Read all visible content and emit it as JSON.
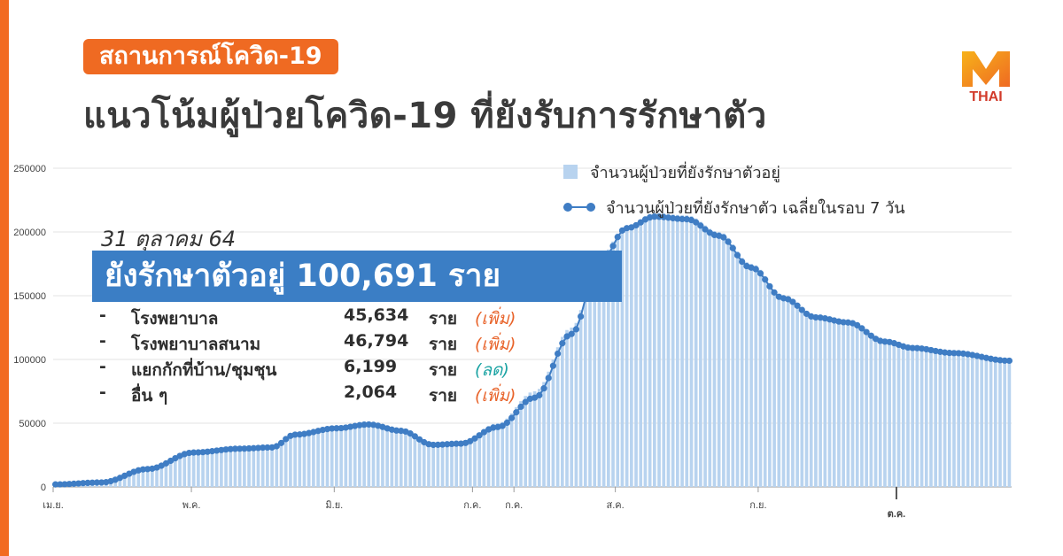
{
  "header": {
    "tag": "สถานการณ์โควิด-19",
    "title": "แนวโน้มผู้ป่วยโควิด-19 ที่ยังรับการรักษาตัว"
  },
  "logo": {
    "line1": "M",
    "line2": "THAI",
    "icon": "mthai-logo"
  },
  "colors": {
    "accent_orange": "#ef6a22",
    "bar": "#b8d3ef",
    "line": "#3f7dc4",
    "box_blue": "#3b7ec5",
    "note_up": "#e8632a",
    "note_down": "#1aa3a3"
  },
  "summary": {
    "date": "31 ตุลาคม 64",
    "total": "ยังรักษาตัวอยู่ 100,691 ราย",
    "items": [
      {
        "dash": "-",
        "name": "โรงพยาบาล",
        "value": "45,634",
        "unit": "ราย",
        "note": "(เพิ่ม)",
        "trend": "up"
      },
      {
        "dash": "-",
        "name": "โรงพยาบาลสนาม",
        "value": "46,794",
        "unit": "ราย",
        "note": "(เพิ่ม)",
        "trend": "up"
      },
      {
        "dash": "-",
        "name": "แยกกักที่บ้าน/ชุมชุน",
        "value": "6,199",
        "unit": "ราย",
        "note": "(ลด)",
        "trend": "down"
      },
      {
        "dash": "-",
        "name": "อื่น ๆ",
        "value": "2,064",
        "unit": "ราย",
        "note": "(เพิ่ม)",
        "trend": "up"
      }
    ]
  },
  "chart_data": {
    "type": "bar",
    "title": "แนวโน้มผู้ป่วยโควิด-19 ที่ยังรับการรักษาตัว",
    "ylim": [
      0,
      250000
    ],
    "yticks": [
      0,
      50000,
      100000,
      150000,
      200000,
      250000
    ],
    "ytick_labels": [
      "0",
      "50000",
      "100000",
      "150000",
      "200000",
      "250000"
    ],
    "xlim": [
      0,
      208
    ],
    "xticks": [
      {
        "x": 0,
        "label": "เม.ย.",
        "bold": false
      },
      {
        "x": 30,
        "label": "พ.ค.",
        "bold": false
      },
      {
        "x": 61,
        "label": "มิ.ย.",
        "bold": false
      },
      {
        "x": 91,
        "label": "ก.ค.",
        "bold": false
      },
      {
        "x": 100,
        "label": "ก.ค.",
        "bold": false
      },
      {
        "x": 122,
        "label": "ส.ค.",
        "bold": false
      },
      {
        "x": 153,
        "label": "ก.ย.",
        "bold": false
      },
      {
        "x": 183,
        "label": "ต.ค.",
        "bold": true
      }
    ],
    "legend": {
      "position": "top-right"
    },
    "grid": true,
    "series": [
      {
        "name": "จำนวนผู้ป่วยที่ยังรักษาตัวอยู่",
        "type": "bar",
        "interpolated_daily": true,
        "points": [
          [
            0,
            3000
          ],
          [
            10,
            5000
          ],
          [
            20,
            15000
          ],
          [
            30,
            28000
          ],
          [
            40,
            32000
          ],
          [
            47,
            33000
          ],
          [
            52,
            42000
          ],
          [
            61,
            47000
          ],
          [
            68,
            50000
          ],
          [
            75,
            46000
          ],
          [
            82,
            35000
          ],
          [
            88,
            35000
          ],
          [
            96,
            50000
          ],
          [
            104,
            75000
          ],
          [
            112,
            125000
          ],
          [
            118,
            180000
          ],
          [
            124,
            205000
          ],
          [
            130,
            215000
          ],
          [
            137,
            213000
          ],
          [
            144,
            200000
          ],
          [
            151,
            175000
          ],
          [
            158,
            150000
          ],
          [
            165,
            135000
          ],
          [
            172,
            130000
          ],
          [
            180,
            116000
          ],
          [
            186,
            110000
          ],
          [
            195,
            105000
          ],
          [
            207,
            100000
          ]
        ]
      },
      {
        "name": "จำนวนผู้ป่วยที่ยังรักษาตัว เฉลี่ยในรอบ 7 วัน",
        "type": "line",
        "interpolated_daily": true,
        "points": [
          [
            0,
            2000
          ],
          [
            10,
            3500
          ],
          [
            20,
            14000
          ],
          [
            30,
            27000
          ],
          [
            40,
            30000
          ],
          [
            47,
            31000
          ],
          [
            52,
            41000
          ],
          [
            61,
            46000
          ],
          [
            68,
            49000
          ],
          [
            75,
            44000
          ],
          [
            82,
            33000
          ],
          [
            88,
            34000
          ],
          [
            96,
            47000
          ],
          [
            104,
            70000
          ],
          [
            112,
            120000
          ],
          [
            118,
            175000
          ],
          [
            124,
            203000
          ],
          [
            130,
            212000
          ],
          [
            137,
            210000
          ],
          [
            144,
            197000
          ],
          [
            151,
            172000
          ],
          [
            158,
            148000
          ],
          [
            165,
            133000
          ],
          [
            172,
            129000
          ],
          [
            180,
            114000
          ],
          [
            186,
            109000
          ],
          [
            195,
            105000
          ],
          [
            207,
            99000
          ]
        ]
      }
    ]
  }
}
